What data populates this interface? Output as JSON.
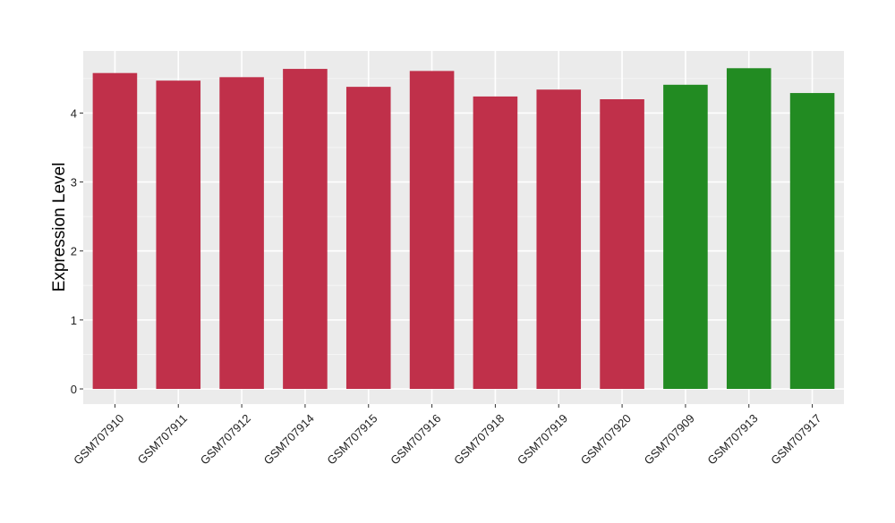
{
  "chart_data": {
    "type": "bar",
    "title": "",
    "xlabel": "",
    "ylabel": "Expression Level",
    "categories": [
      "GSM707910",
      "GSM707911",
      "GSM707912",
      "GSM707914",
      "GSM707915",
      "GSM707916",
      "GSM707918",
      "GSM707919",
      "GSM707920",
      "GSM707909",
      "GSM707913",
      "GSM707917"
    ],
    "values": [
      4.58,
      4.47,
      4.52,
      4.64,
      4.38,
      4.61,
      4.24,
      4.34,
      4.2,
      4.41,
      4.65,
      4.29
    ],
    "bar_colors": [
      "#c0304a",
      "#c0304a",
      "#c0304a",
      "#c0304a",
      "#c0304a",
      "#c0304a",
      "#c0304a",
      "#c0304a",
      "#c0304a",
      "#228b22",
      "#228b22",
      "#228b22"
    ],
    "y_ticks": [
      0,
      1,
      2,
      3,
      4
    ],
    "ylim": [
      -0.22,
      4.9
    ],
    "grid": true,
    "colors": {
      "panel_bg": "#ebebeb",
      "grid_major": "#ffffff",
      "grid_minor": "#f5f5f5",
      "tick_text": "#222222"
    }
  }
}
